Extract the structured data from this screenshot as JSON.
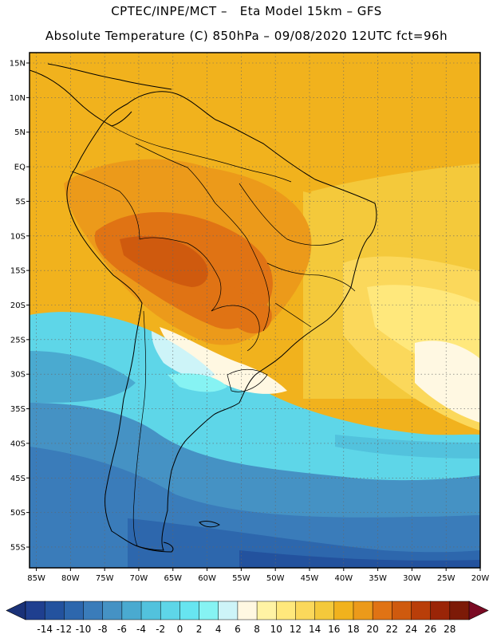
{
  "header": {
    "line1": "CPTEC/INPE/MCT –   Eta Model 15km – GFS",
    "line2": "Absolute Temperature (C) 850hPa – 09/08/2020 12UTC fct=96h"
  },
  "map": {
    "lat_labels": [
      "15N",
      "10N",
      "5N",
      "EQ",
      "5S",
      "10S",
      "15S",
      "20S",
      "25S",
      "30S",
      "35S",
      "40S",
      "45S",
      "50S",
      "55S"
    ],
    "lat_values": [
      15,
      10,
      5,
      0,
      -5,
      -10,
      -15,
      -20,
      -25,
      -30,
      -35,
      -40,
      -45,
      -50,
      -55
    ],
    "lon_labels": [
      "85W",
      "80W",
      "75W",
      "70W",
      "65W",
      "60W",
      "55W",
      "50W",
      "45W",
      "40W",
      "35W",
      "30W",
      "25W",
      "20W"
    ],
    "lon_values": [
      -85,
      -80,
      -75,
      -70,
      -65,
      -60,
      -55,
      -50,
      -45,
      -40,
      -35,
      -30,
      -25,
      -20
    ],
    "lat_range": [
      -58,
      16.5
    ],
    "lon_range": [
      -86,
      -20
    ]
  },
  "colorbar": {
    "labels": [
      "-14",
      "-12",
      "-10",
      "-8",
      "-6",
      "-4",
      "-2",
      "0",
      "2",
      "4",
      "6",
      "8",
      "10",
      "12",
      "14",
      "16",
      "18",
      "20",
      "22",
      "24",
      "26",
      "28"
    ],
    "colors": [
      "#1f3f8f",
      "#23529e",
      "#2d67ad",
      "#3a7cba",
      "#4592c4",
      "#4aaad0",
      "#52c2dd",
      "#5ed6e8",
      "#67e5f0",
      "#86f3f3",
      "#cdf4f8",
      "#fff8e2",
      "#fff3a4",
      "#ffe87c",
      "#fbd85b",
      "#f4c93b",
      "#f1b21d",
      "#ec9a1a",
      "#e07314",
      "#cf5a0e",
      "#b93e09",
      "#9a2507",
      "#7c1a07"
    ],
    "under_color": "#1a3278",
    "over_color": "#7a0a23"
  }
}
